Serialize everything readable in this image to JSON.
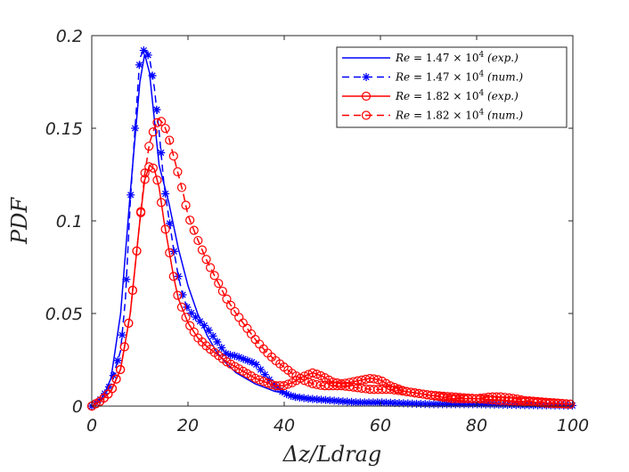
{
  "chart_data": {
    "type": "line",
    "xlabel": "Δz/Ldrag",
    "ylabel": "PDF",
    "xlim": [
      0,
      100
    ],
    "ylim": [
      0,
      0.2
    ],
    "xticks": [
      0,
      20,
      40,
      60,
      80,
      100
    ],
    "yticks": [
      0,
      0.05,
      0.1,
      0.15,
      0.2
    ],
    "xtick_labels": [
      "0",
      "20",
      "40",
      "60",
      "80",
      "100"
    ],
    "ytick_labels": [
      "0",
      "0.05",
      "0.1",
      "0.15",
      "0.2"
    ],
    "grid": false,
    "legend_position": "top-right",
    "series": [
      {
        "name": "Re = 1.47 × 10^4 (exp.)",
        "legend": {
          "lhs": "Re",
          "mant": "1.47",
          "exp": "4",
          "note": "exp."
        },
        "color": "#0000ff",
        "linestyle": "solid",
        "marker": "none",
        "x": [
          0,
          2,
          4,
          6,
          8,
          10,
          11,
          12,
          13,
          14,
          16,
          18,
          20,
          22,
          24,
          26,
          28,
          30,
          32,
          34,
          36,
          38,
          40,
          42,
          44,
          46,
          48,
          50,
          55,
          60,
          65,
          70,
          75,
          80,
          85,
          90,
          95,
          100
        ],
        "y": [
          0,
          0.003,
          0.015,
          0.05,
          0.115,
          0.175,
          0.19,
          0.18,
          0.155,
          0.13,
          0.11,
          0.085,
          0.065,
          0.05,
          0.038,
          0.029,
          0.023,
          0.018,
          0.015,
          0.012,
          0.01,
          0.008,
          0.007,
          0.006,
          0.005,
          0.004,
          0.003,
          0.003,
          0.002,
          0.0015,
          0.0012,
          0.001,
          0.0008,
          0.0007,
          0.0006,
          0.0005,
          0.0004,
          0.0003
        ]
      },
      {
        "name": "Re = 1.47 × 10^4 (num.)",
        "legend": {
          "lhs": "Re",
          "mant": "1.47",
          "exp": "4",
          "note": "num."
        },
        "color": "#0000ff",
        "linestyle": "dashed",
        "marker": "star",
        "x": [
          0,
          2,
          4,
          6,
          7,
          8,
          9,
          10,
          11,
          12,
          13,
          14,
          15,
          16,
          17,
          18,
          19,
          20,
          22,
          24,
          26,
          28,
          30,
          32,
          34,
          36,
          38,
          40,
          42,
          45,
          50,
          55,
          60,
          65,
          70,
          75,
          80,
          85,
          90,
          95,
          100
        ],
        "y": [
          0,
          0.004,
          0.012,
          0.03,
          0.058,
          0.11,
          0.15,
          0.188,
          0.193,
          0.188,
          0.172,
          0.148,
          0.12,
          0.102,
          0.085,
          0.07,
          0.059,
          0.052,
          0.047,
          0.042,
          0.035,
          0.028,
          0.027,
          0.025,
          0.023,
          0.017,
          0.011,
          0.007,
          0.005,
          0.004,
          0.003,
          0.002,
          0.002,
          0.0015,
          0.001,
          0.001,
          0.001,
          0.0008,
          0.0005,
          0.0004,
          0.0003
        ]
      },
      {
        "name": "Re = 1.82 × 10^4 (exp.)",
        "legend": {
          "lhs": "Re",
          "mant": "1.82",
          "exp": "4",
          "note": "exp."
        },
        "color": "#ff0000",
        "linestyle": "solid",
        "marker": "circle",
        "x": [
          0,
          2,
          4,
          6,
          8,
          10,
          11,
          12,
          13,
          14,
          15,
          16,
          17,
          18,
          20,
          22,
          24,
          26,
          28,
          30,
          32,
          34,
          36,
          38,
          40,
          42,
          44,
          46,
          48,
          50,
          52,
          54,
          56,
          58,
          60,
          62,
          65,
          70,
          75,
          80,
          85,
          90,
          95,
          100
        ],
        "y": [
          0,
          0.003,
          0.008,
          0.02,
          0.05,
          0.1,
          0.122,
          0.13,
          0.128,
          0.118,
          0.1,
          0.085,
          0.07,
          0.058,
          0.045,
          0.037,
          0.032,
          0.028,
          0.024,
          0.021,
          0.018,
          0.015,
          0.013,
          0.011,
          0.011,
          0.013,
          0.016,
          0.018,
          0.016,
          0.013,
          0.012,
          0.013,
          0.014,
          0.015,
          0.014,
          0.011,
          0.008,
          0.006,
          0.004,
          0.004,
          0.003,
          0.0025,
          0.0015,
          0.001
        ]
      },
      {
        "name": "Re = 1.82 × 10^4 (num.)",
        "legend": {
          "lhs": "Re",
          "mant": "1.82",
          "exp": "4",
          "note": "num."
        },
        "color": "#ff0000",
        "linestyle": "dashed",
        "marker": "circle",
        "x": [
          0,
          2,
          4,
          6,
          8,
          10,
          11,
          12,
          13,
          14,
          15,
          16,
          17,
          18,
          19,
          20,
          22,
          24,
          26,
          28,
          30,
          32,
          34,
          36,
          38,
          40,
          42,
          44,
          46,
          48,
          50,
          52,
          55,
          58,
          60,
          62,
          65,
          70,
          75,
          80,
          83,
          85,
          88,
          90,
          95,
          100
        ],
        "y": [
          0,
          0.003,
          0.008,
          0.02,
          0.05,
          0.1,
          0.125,
          0.142,
          0.15,
          0.155,
          0.152,
          0.145,
          0.135,
          0.125,
          0.115,
          0.103,
          0.09,
          0.078,
          0.068,
          0.058,
          0.05,
          0.043,
          0.036,
          0.03,
          0.025,
          0.021,
          0.017,
          0.014,
          0.012,
          0.011,
          0.011,
          0.011,
          0.01,
          0.009,
          0.009,
          0.009,
          0.008,
          0.006,
          0.005,
          0.004,
          0.005,
          0.005,
          0.004,
          0.003,
          0.002,
          0.001
        ]
      }
    ]
  }
}
